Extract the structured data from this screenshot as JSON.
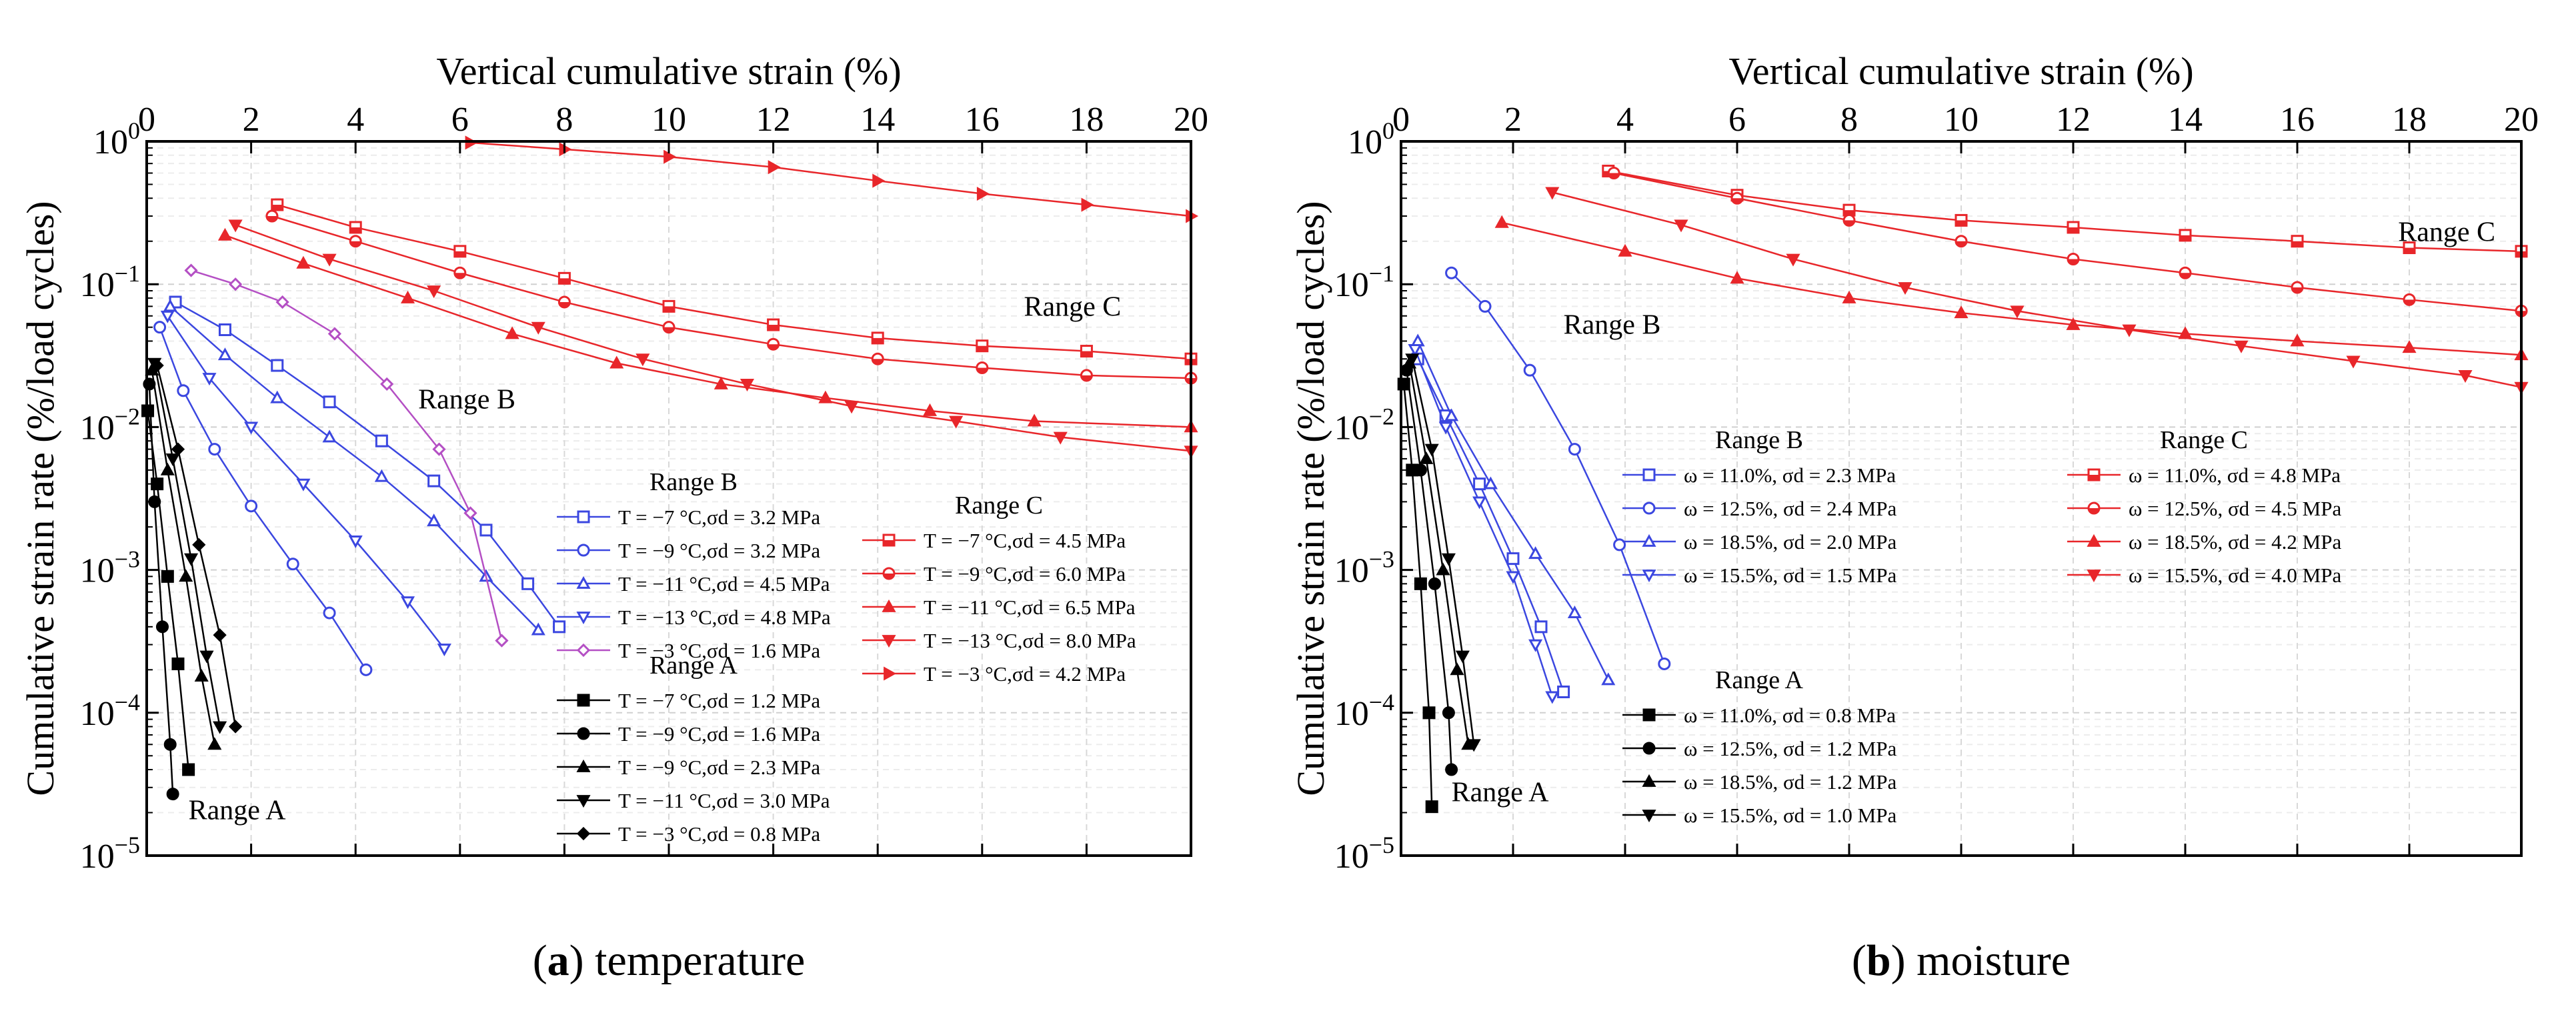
{
  "chart_data": [
    {
      "type": "scatter",
      "panel": "a",
      "caption_letter": "a",
      "caption_text": "temperature",
      "title": "",
      "xlabel": "Vertical cumulative strain (%)",
      "ylabel": "Cumulative strain rate (%/load cycles)",
      "x_axis_position": "top",
      "xlim": [
        0,
        20
      ],
      "ylim": [
        1e-05,
        1
      ],
      "yscale": "log",
      "x_ticks": [
        "0",
        "2",
        "4",
        "6",
        "8",
        "10",
        "12",
        "14",
        "16",
        "18",
        "20"
      ],
      "grid": true,
      "range_labels": [
        {
          "text": "Range A",
          "x": 0.8,
          "y": 1.8e-05
        },
        {
          "text": "Range B",
          "x": 5.2,
          "y": 0.0135
        },
        {
          "text": "Range C",
          "x": 16.8,
          "y": 0.06
        }
      ],
      "legend_groups": [
        {
          "heading": "Range B",
          "group": "B",
          "placement": "center"
        },
        {
          "heading": "Range A",
          "group": "A",
          "placement": "bottom-center"
        },
        {
          "heading": "Range C",
          "group": "C",
          "placement": "center-right"
        }
      ],
      "series": [
        {
          "name": "T = −7 °C,σd = 3.2 MPa",
          "group": "B",
          "color": "#3b47e0",
          "marker": "square",
          "filled": false,
          "x": [
            0.55,
            1.5,
            2.5,
            3.5,
            4.5,
            5.5,
            6.5,
            7.3,
            7.9
          ],
          "y": [
            0.075,
            0.048,
            0.027,
            0.015,
            0.008,
            0.0042,
            0.0019,
            0.0008,
            0.0004
          ]
        },
        {
          "name": "T = −9 °C,σd = 3.2 MPa",
          "group": "B",
          "color": "#3b47e0",
          "marker": "circle",
          "filled": false,
          "x": [
            0.25,
            0.7,
            1.3,
            2.0,
            2.8,
            3.5,
            4.2
          ],
          "y": [
            0.05,
            0.018,
            0.007,
            0.0028,
            0.0011,
            0.0005,
            0.0002
          ]
        },
        {
          "name": "T = −11 °C,σd = 4.5 MPa",
          "group": "B",
          "color": "#3b47e0",
          "marker": "triangle-up",
          "filled": false,
          "x": [
            0.45,
            1.5,
            2.5,
            3.5,
            4.5,
            5.5,
            6.5,
            7.5
          ],
          "y": [
            0.07,
            0.032,
            0.016,
            0.0085,
            0.0045,
            0.0022,
            0.0009,
            0.00038
          ]
        },
        {
          "name": "T = −13 °C,σd = 4.8 MPa",
          "group": "B",
          "color": "#3b47e0",
          "marker": "triangle-down",
          "filled": false,
          "x": [
            0.4,
            1.2,
            2.0,
            3.0,
            4.0,
            5.0,
            5.7
          ],
          "y": [
            0.06,
            0.022,
            0.01,
            0.004,
            0.0016,
            0.0006,
            0.00028
          ]
        },
        {
          "name": "T = −3 °C,σd = 1.6 MPa",
          "group": "B",
          "color": "#b44fc4",
          "marker": "diamond",
          "filled": false,
          "x": [
            0.85,
            1.7,
            2.6,
            3.6,
            4.6,
            5.6,
            6.2,
            6.8
          ],
          "y": [
            0.125,
            0.1,
            0.075,
            0.045,
            0.02,
            0.007,
            0.0025,
            0.00032
          ]
        },
        {
          "name": "T = −7 °C,σd = 1.2 MPa",
          "group": "A",
          "color": "#000000",
          "marker": "square",
          "filled": true,
          "x": [
            0.02,
            0.2,
            0.4,
            0.6,
            0.8
          ],
          "y": [
            0.013,
            0.004,
            0.0009,
            0.00022,
            4e-05
          ]
        },
        {
          "name": "T = −9 °C,σd = 1.6 MPa",
          "group": "A",
          "color": "#000000",
          "marker": "circle",
          "filled": true,
          "x": [
            0.05,
            0.15,
            0.3,
            0.45,
            0.5
          ],
          "y": [
            0.02,
            0.003,
            0.0004,
            6e-05,
            2.7e-05
          ]
        },
        {
          "name": "T = −9 °C,σd = 2.3 MPa",
          "group": "A",
          "color": "#000000",
          "marker": "triangle-up",
          "filled": true,
          "x": [
            0.1,
            0.4,
            0.75,
            1.05,
            1.3
          ],
          "y": [
            0.025,
            0.005,
            0.0009,
            0.00018,
            6e-05
          ]
        },
        {
          "name": "T = −11 °C,σd = 3.0 MPa",
          "group": "A",
          "color": "#000000",
          "marker": "triangle-down",
          "filled": true,
          "x": [
            0.15,
            0.5,
            0.85,
            1.15,
            1.4
          ],
          "y": [
            0.028,
            0.006,
            0.0012,
            0.00025,
            8e-05
          ]
        },
        {
          "name": "T = −3 °C,σd = 0.8 MPa",
          "group": "A",
          "color": "#000000",
          "marker": "diamond",
          "filled": true,
          "x": [
            0.2,
            0.6,
            1.0,
            1.4,
            1.7
          ],
          "y": [
            0.027,
            0.007,
            0.0015,
            0.00035,
            8e-05
          ]
        },
        {
          "name": "T = −7 °C,σd = 4.5 MPa",
          "group": "C",
          "color": "#e8262a",
          "marker": "square-half",
          "filled": true,
          "x": [
            2.5,
            4.0,
            6.0,
            8.0,
            10.0,
            12.0,
            14.0,
            16.0,
            18.0,
            20.0
          ],
          "y": [
            0.36,
            0.25,
            0.17,
            0.11,
            0.07,
            0.052,
            0.042,
            0.037,
            0.034,
            0.03
          ]
        },
        {
          "name": "T = −9 °C,σd = 6.0 MPa",
          "group": "C",
          "color": "#e8262a",
          "marker": "circle-half",
          "filled": true,
          "x": [
            2.4,
            4.0,
            6.0,
            8.0,
            10.0,
            12.0,
            14.0,
            16.0,
            18.0,
            20.0
          ],
          "y": [
            0.3,
            0.2,
            0.12,
            0.075,
            0.05,
            0.038,
            0.03,
            0.026,
            0.023,
            0.022
          ]
        },
        {
          "name": "T = −11 °C,σd = 6.5 MPa",
          "group": "C",
          "color": "#e8262a",
          "marker": "triangle-up",
          "filled": true,
          "x": [
            1.5,
            3.0,
            5.0,
            7.0,
            9.0,
            11.0,
            13.0,
            15.0,
            17.0,
            20.0
          ],
          "y": [
            0.22,
            0.14,
            0.08,
            0.045,
            0.028,
            0.02,
            0.016,
            0.013,
            0.011,
            0.01
          ]
        },
        {
          "name": "T = −13 °C,σd = 8.0 MPa",
          "group": "C",
          "color": "#e8262a",
          "marker": "triangle-down",
          "filled": true,
          "x": [
            1.7,
            3.5,
            5.5,
            7.5,
            9.5,
            11.5,
            13.5,
            15.5,
            17.5,
            20.0
          ],
          "y": [
            0.26,
            0.15,
            0.09,
            0.05,
            0.03,
            0.02,
            0.014,
            0.011,
            0.0085,
            0.0068
          ]
        },
        {
          "name": "T = −3 °C,σd = 4.2 MPa",
          "group": "C",
          "color": "#e8262a",
          "marker": "triangle-right",
          "filled": true,
          "x": [
            6.2,
            8.0,
            10.0,
            12.0,
            14.0,
            16.0,
            18.0,
            20.0
          ],
          "y": [
            0.98,
            0.88,
            0.78,
            0.66,
            0.53,
            0.43,
            0.36,
            0.3
          ]
        }
      ]
    },
    {
      "type": "scatter",
      "panel": "b",
      "caption_letter": "b",
      "caption_text": "moisture",
      "title": "",
      "xlabel": "Vertical cumulative strain (%)",
      "ylabel": "Cumulative strain rate (%/load cycles)",
      "x_axis_position": "top",
      "xlim": [
        0,
        20
      ],
      "ylim": [
        1e-05,
        1
      ],
      "yscale": "log",
      "x_ticks": [
        "0",
        "2",
        "4",
        "6",
        "8",
        "10",
        "12",
        "14",
        "16",
        "18",
        "20"
      ],
      "grid": true,
      "range_labels": [
        {
          "text": "Range A",
          "x": 0.9,
          "y": 2.4e-05
        },
        {
          "text": "Range B",
          "x": 2.9,
          "y": 0.045
        },
        {
          "text": "Range C",
          "x": 17.8,
          "y": 0.2
        }
      ],
      "legend_groups": [
        {
          "heading": "Range B",
          "group": "B",
          "placement": "center"
        },
        {
          "heading": "Range C",
          "group": "C",
          "placement": "center-right"
        },
        {
          "heading": "Range A",
          "group": "A",
          "placement": "bottom-center"
        }
      ],
      "series": [
        {
          "name": "ω = 11.0%, σd = 2.3 MPa",
          "group": "B",
          "color": "#3b47e0",
          "marker": "square",
          "filled": false,
          "x": [
            0.3,
            0.8,
            1.4,
            2.0,
            2.5,
            2.9
          ],
          "y": [
            0.03,
            0.012,
            0.004,
            0.0012,
            0.0004,
            0.00014
          ]
        },
        {
          "name": "ω = 12.5%, σd = 2.4 MPa",
          "group": "B",
          "color": "#3b47e0",
          "marker": "circle",
          "filled": false,
          "x": [
            0.9,
            1.5,
            2.3,
            3.1,
            3.9,
            4.7
          ],
          "y": [
            0.12,
            0.07,
            0.025,
            0.007,
            0.0015,
            0.00022
          ]
        },
        {
          "name": "ω = 18.5%, σd = 2.0 MPa",
          "group": "B",
          "color": "#3b47e0",
          "marker": "triangle-up",
          "filled": false,
          "x": [
            0.3,
            0.9,
            1.6,
            2.4,
            3.1,
            3.7
          ],
          "y": [
            0.04,
            0.012,
            0.004,
            0.0013,
            0.0005,
            0.00017
          ]
        },
        {
          "name": "ω = 15.5%, σd = 1.5 MPa",
          "group": "B",
          "color": "#3b47e0",
          "marker": "triangle-down",
          "filled": false,
          "x": [
            0.25,
            0.8,
            1.4,
            2.0,
            2.4,
            2.7
          ],
          "y": [
            0.035,
            0.01,
            0.003,
            0.0009,
            0.0003,
            0.00013
          ]
        },
        {
          "name": "ω = 11.0%, σd = 0.8 MPa",
          "group": "A",
          "color": "#000000",
          "marker": "square",
          "filled": true,
          "x": [
            0.05,
            0.2,
            0.35,
            0.5,
            0.55
          ],
          "y": [
            0.02,
            0.005,
            0.0008,
            0.0001,
            2.2e-05
          ]
        },
        {
          "name": "ω = 12.5%, σd = 1.2 MPa",
          "group": "A",
          "color": "#000000",
          "marker": "circle",
          "filled": true,
          "x": [
            0.1,
            0.35,
            0.6,
            0.85,
            0.9
          ],
          "y": [
            0.025,
            0.005,
            0.0008,
            0.0001,
            4e-05
          ]
        },
        {
          "name": "ω = 18.5%, σd = 1.2 MPa",
          "group": "A",
          "color": "#000000",
          "marker": "triangle-up",
          "filled": true,
          "x": [
            0.15,
            0.45,
            0.75,
            1.0,
            1.2
          ],
          "y": [
            0.028,
            0.006,
            0.001,
            0.0002,
            6e-05
          ]
        },
        {
          "name": "ω = 15.5%, σd = 1.0 MPa",
          "group": "A",
          "color": "#000000",
          "marker": "triangle-down",
          "filled": true,
          "x": [
            0.2,
            0.55,
            0.85,
            1.1,
            1.3
          ],
          "y": [
            0.03,
            0.007,
            0.0012,
            0.00025,
            6e-05
          ]
        },
        {
          "name": "ω = 11.0%, σd = 4.8 MPa",
          "group": "C",
          "color": "#e8262a",
          "marker": "square-half",
          "filled": true,
          "x": [
            3.7,
            6.0,
            8.0,
            10.0,
            12.0,
            14.0,
            16.0,
            18.0,
            20.0
          ],
          "y": [
            0.62,
            0.42,
            0.33,
            0.28,
            0.25,
            0.22,
            0.2,
            0.18,
            0.17
          ]
        },
        {
          "name": "ω = 12.5%, σd = 4.5 MPa",
          "group": "C",
          "color": "#e8262a",
          "marker": "circle-half",
          "filled": true,
          "x": [
            3.8,
            6.0,
            8.0,
            10.0,
            12.0,
            14.0,
            16.0,
            18.0,
            20.0
          ],
          "y": [
            0.6,
            0.4,
            0.28,
            0.2,
            0.15,
            0.12,
            0.095,
            0.078,
            0.065
          ]
        },
        {
          "name": "ω = 18.5%, σd = 4.2 MPa",
          "group": "C",
          "color": "#e8262a",
          "marker": "triangle-up",
          "filled": true,
          "x": [
            1.8,
            4.0,
            6.0,
            8.0,
            10.0,
            12.0,
            14.0,
            16.0,
            18.0,
            20.0
          ],
          "y": [
            0.27,
            0.17,
            0.11,
            0.08,
            0.063,
            0.052,
            0.045,
            0.04,
            0.036,
            0.032
          ]
        },
        {
          "name": "ω = 15.5%, σd = 4.0 MPa",
          "group": "C",
          "color": "#e8262a",
          "marker": "triangle-down",
          "filled": true,
          "x": [
            2.7,
            5.0,
            7.0,
            9.0,
            11.0,
            13.0,
            15.0,
            17.0,
            19.0,
            20.0
          ],
          "y": [
            0.44,
            0.26,
            0.15,
            0.095,
            0.065,
            0.048,
            0.037,
            0.029,
            0.023,
            0.019
          ]
        }
      ]
    }
  ]
}
